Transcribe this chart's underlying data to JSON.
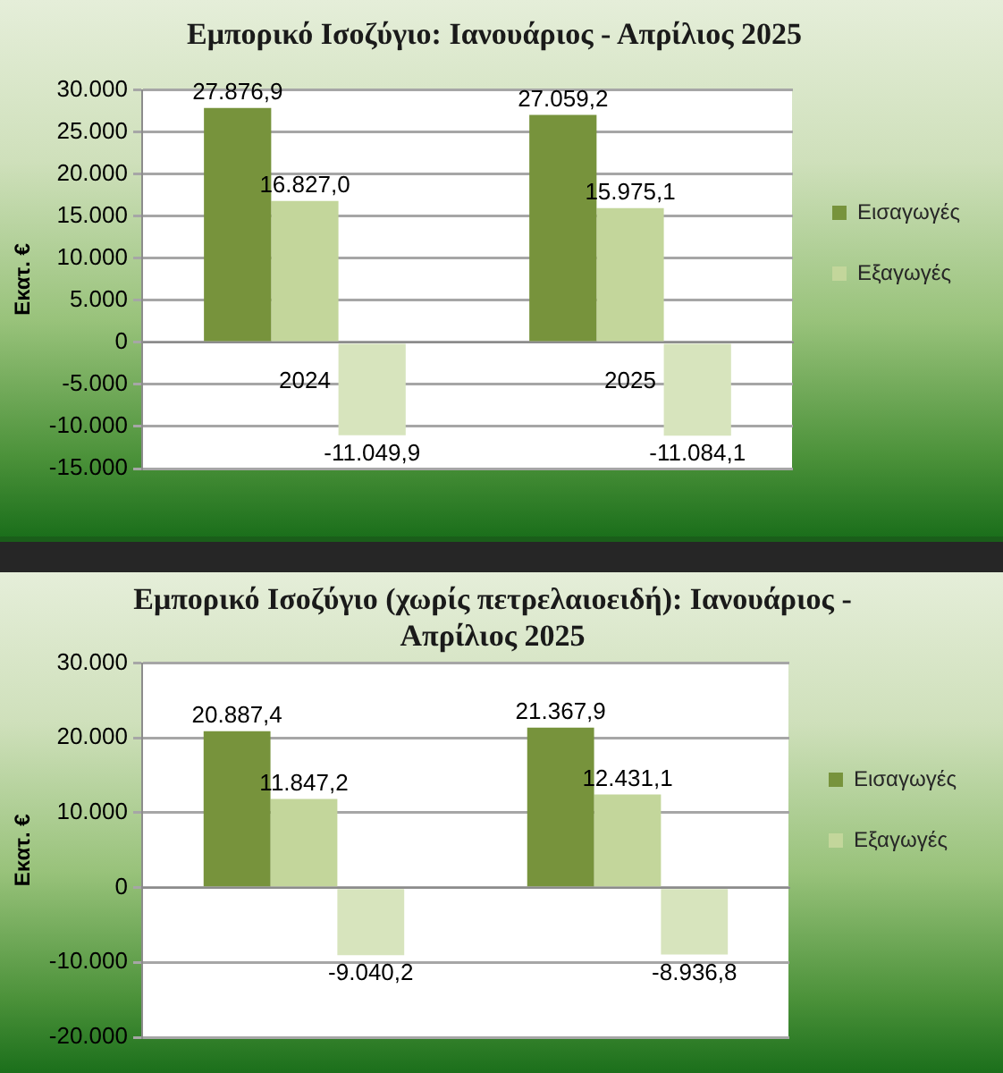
{
  "chart_data": [
    {
      "type": "bar",
      "title": "Εμπορικό Ισοζύγιο: Ιανουάριος - Απρίλιος 2025",
      "ylabel": "Εκατ. €",
      "categories": [
        "2024",
        "2025"
      ],
      "series": [
        {
          "name": "Εισαγωγές",
          "color": "#77933c",
          "values": [
            27876.9,
            27059.2
          ],
          "value_labels": [
            "27.876,9",
            "27.059,2"
          ]
        },
        {
          "name": "Εξαγωγές",
          "color": "#c3d69b",
          "values": [
            16827.0,
            15975.1
          ],
          "value_labels": [
            "16.827,0",
            "15.975,1"
          ]
        },
        {
          "color": "#d7e4bd",
          "values": [
            -11049.9,
            -11084.1
          ],
          "value_labels": [
            "-11.049,9",
            "-11.084,1"
          ]
        }
      ],
      "ylim": [
        -15000,
        30000
      ],
      "yticks": [
        {
          "value": -15000,
          "label": "-15.000"
        },
        {
          "value": -10000,
          "label": "-10.000"
        },
        {
          "value": -5000,
          "label": "-5.000"
        },
        0,
        {
          "value": 5000,
          "label": "5.000"
        },
        {
          "value": 10000,
          "label": "10.000"
        },
        {
          "value": 15000,
          "label": "15.000"
        },
        {
          "value": 20000,
          "label": "20.000"
        },
        {
          "value": 25000,
          "label": "25.000"
        },
        {
          "value": 30000,
          "label": "30.000"
        }
      ],
      "grid": "y",
      "legend": "right"
    },
    {
      "type": "bar",
      "title": "Εμπορικό Ισοζύγιο (χωρίς πετρελαιοειδή): Ιανουάριος - Απρίλιος 2025",
      "ylabel": "Εκατ. €",
      "categories": [
        null,
        null
      ],
      "series": [
        {
          "name": "Εισαγωγές",
          "color": "#77933c",
          "values": [
            20887.4,
            21367.9
          ],
          "value_labels": [
            "20.887,4",
            "21.367,9"
          ]
        },
        {
          "name": "Εξαγωγές",
          "color": "#c3d69b",
          "values": [
            11847.2,
            12431.1
          ],
          "value_labels": [
            "11.847,2",
            "12.431,1"
          ]
        },
        {
          "color": "#d7e4bd",
          "values": [
            -9040.2,
            -8936.8
          ],
          "value_labels": [
            "-9.040,2",
            "-8.936,8"
          ]
        }
      ],
      "ylim": [
        -20000,
        30000
      ],
      "yticks": [
        {
          "value": -20000,
          "label": "-20.000"
        },
        {
          "value": -10000,
          "label": "-10.000"
        },
        0,
        {
          "value": 10000,
          "label": "10.000"
        },
        {
          "value": 20000,
          "label": "20.000"
        },
        {
          "value": 30000,
          "label": "30.000"
        }
      ],
      "grid": "y",
      "legend": "right",
      "tick_labels": "y"
    }
  ]
}
